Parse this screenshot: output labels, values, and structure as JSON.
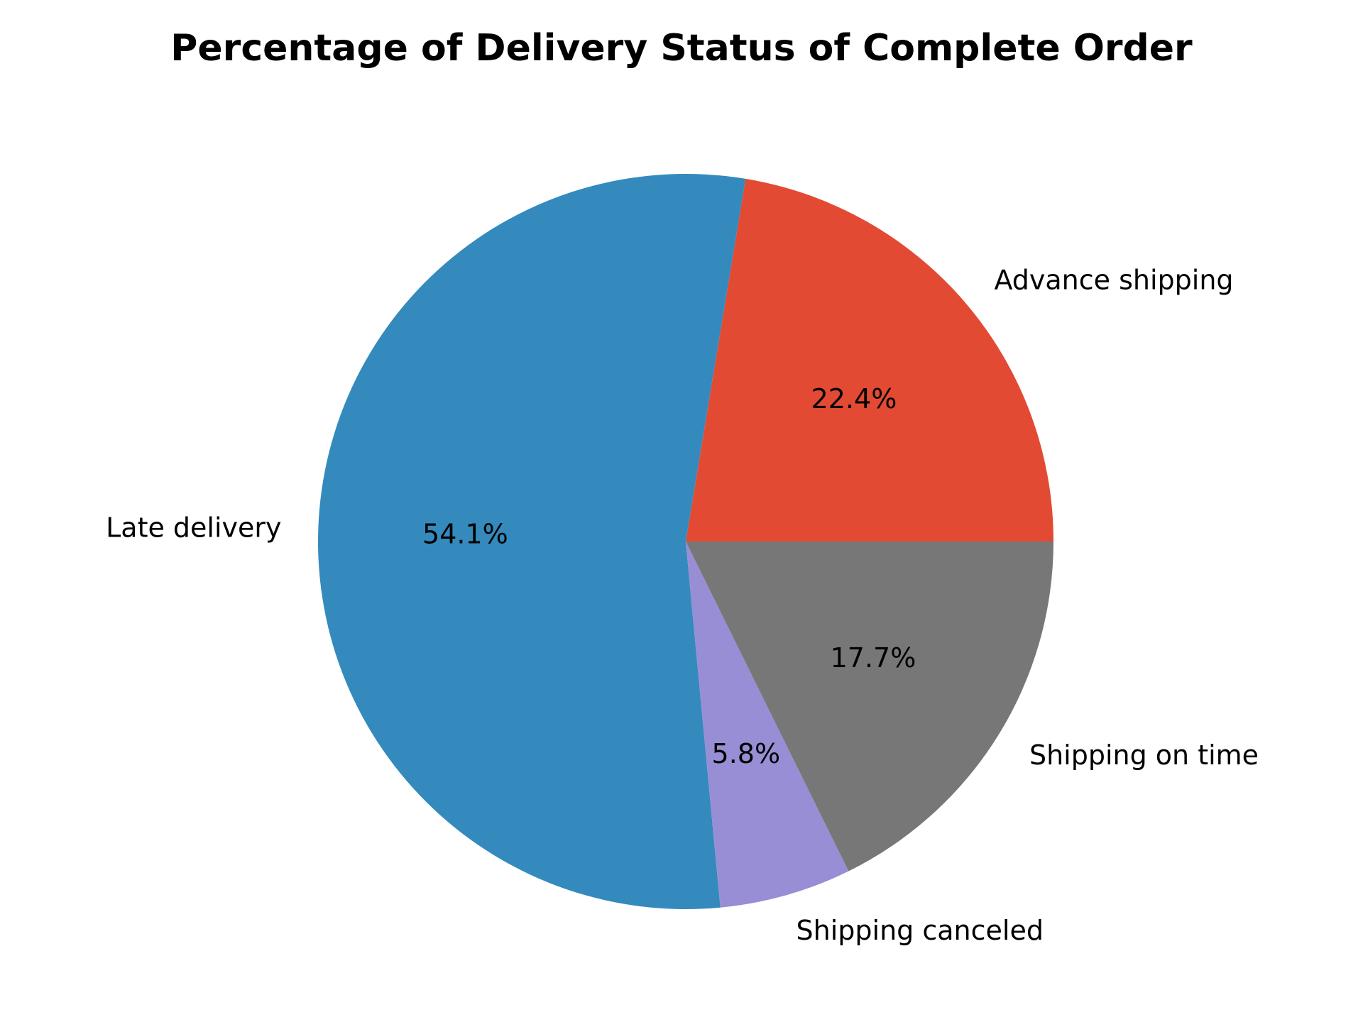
{
  "chart_data": {
    "type": "pie",
    "title": "Percentage of Delivery Status of Complete Order",
    "categories": [
      "Advance shipping",
      "Late delivery",
      "Shipping canceled",
      "Shipping on time"
    ],
    "values": [
      22.4,
      54.1,
      5.8,
      17.7
    ],
    "value_labels": [
      "22.4%",
      "54.1%",
      "5.8%",
      "17.7%"
    ],
    "colors": [
      "#E24A33",
      "#348ABD",
      "#988ED5",
      "#777777"
    ],
    "start_angle_deg": 0,
    "direction": "counterclockwise",
    "legend": "none"
  }
}
